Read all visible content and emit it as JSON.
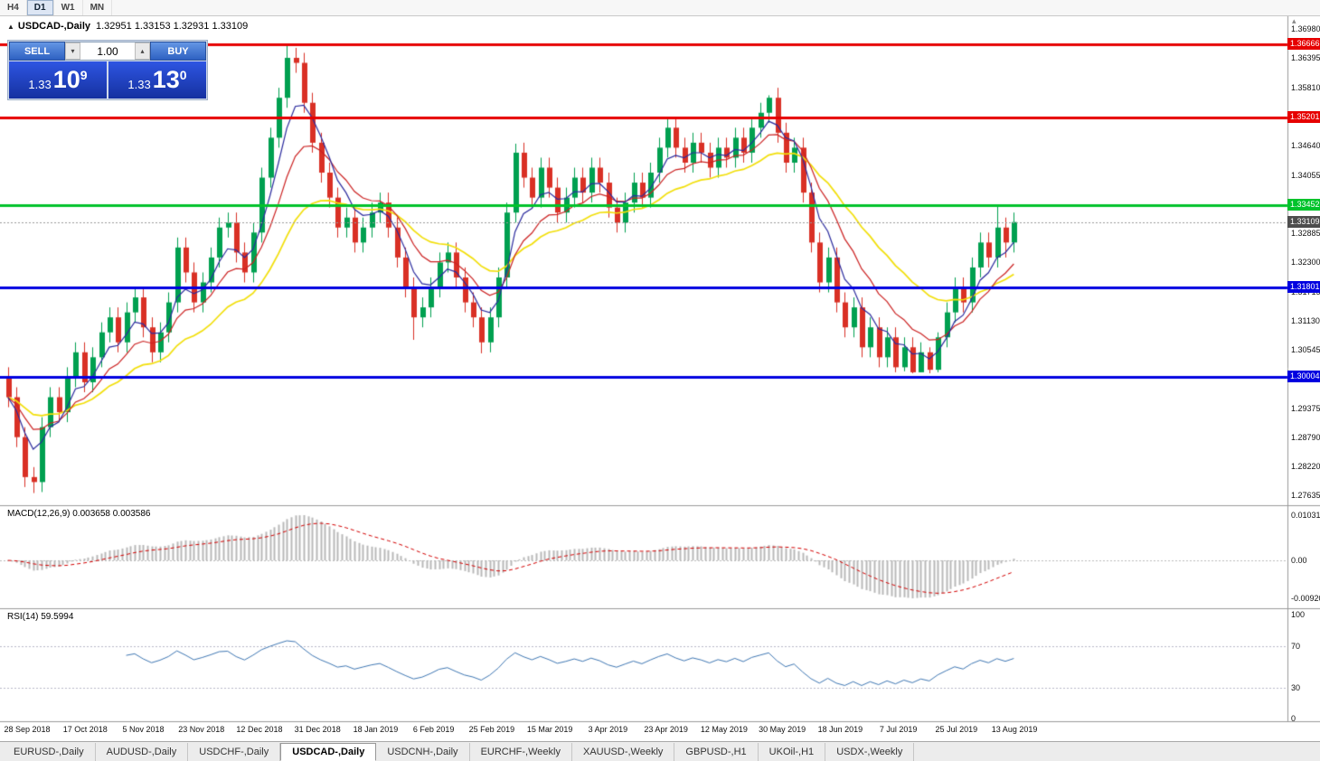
{
  "toolbar": {
    "timeframes": [
      "H4",
      "D1",
      "W1",
      "MN"
    ],
    "active": "D1"
  },
  "chart": {
    "title_symbol": "USDCAD-,Daily",
    "title_ohlc": "1.32951 1.33153 1.32931 1.33109",
    "trade_panel": {
      "sell_label": "SELL",
      "buy_label": "BUY",
      "lot": "1.00",
      "sell_prefix": "1.33",
      "sell_big": "10",
      "sell_sup": "9",
      "buy_prefix": "1.33",
      "buy_big": "13",
      "buy_sup": "0"
    }
  },
  "chart_data": {
    "type": "candlestick",
    "symbol": "USDCAD-",
    "timeframe": "Daily",
    "ohlc_current": {
      "open": 1.32951,
      "high": 1.33153,
      "low": 1.32931,
      "close": 1.33109
    },
    "y_axis": {
      "min": 1.27635,
      "max": 1.3698,
      "ticks": [
        "1.36980",
        "1.36395",
        "1.35810",
        "1.35225",
        "1.34640",
        "1.34055",
        "1.33470",
        "1.32885",
        "1.32300",
        "1.31715",
        "1.31130",
        "1.30545",
        "1.29960",
        "1.29375",
        "1.28790",
        "1.28220",
        "1.27635"
      ]
    },
    "x_labels": [
      "28 Sep 2018",
      "17 Oct 2018",
      "5 Nov 2018",
      "23 Nov 2018",
      "12 Dec 2018",
      "31 Dec 2018",
      "18 Jan 2019",
      "6 Feb 2019",
      "25 Feb 2019",
      "15 Mar 2019",
      "3 Apr 2019",
      "23 Apr 2019",
      "12 May 2019",
      "30 May 2019",
      "18 Jun 2019",
      "7 Jul 2019",
      "25 Jul 2019",
      "13 Aug 2019"
    ],
    "horizontal_lines": [
      {
        "price": 1.36666,
        "label": "1.36666",
        "color": "#e60000"
      },
      {
        "price": 1.35201,
        "label": "1.35201",
        "color": "#e60000"
      },
      {
        "price": 1.33452,
        "label": "1.33452",
        "color": "#00c32b"
      },
      {
        "price": 1.31801,
        "label": "1.31801",
        "color": "#0000e0"
      },
      {
        "price": 1.30004,
        "label": "1.30004",
        "color": "#0000e0"
      }
    ],
    "current_price": {
      "value": 1.33109,
      "label": "1.33109",
      "color": "#4d4d4d"
    },
    "moving_averages": [
      {
        "name": "fast",
        "period": 5,
        "color": "#2b2b9e"
      },
      {
        "name": "mid",
        "period": 10,
        "color": "#cc2222"
      },
      {
        "name": "slow",
        "period": 21,
        "color": "#f2df0a"
      }
    ],
    "colors": {
      "bull": "#00a050",
      "bear": "#d93025"
    },
    "macd": {
      "title": "MACD(12,26,9) 0.003658 0.003586",
      "fast": 12,
      "slow": 26,
      "signal": 9,
      "ticks": [
        {
          "label": "0.010311",
          "value": 0.010311
        },
        {
          "label": "0.00",
          "value": 0
        },
        {
          "label": "-0.00920",
          "value": -0.0092
        }
      ],
      "hist_color": "#b8b8b8",
      "signal_color": "#d40000"
    },
    "rsi": {
      "title": "RSI(14) 59.5994",
      "period": 14,
      "value": 59.5994,
      "levels": [
        70,
        30
      ],
      "ticks": [
        {
          "label": "100",
          "value": 100
        },
        {
          "label": "70",
          "value": 70
        },
        {
          "label": "30",
          "value": 30
        },
        {
          "label": "0",
          "value": 0
        }
      ],
      "color": "#4078b4"
    },
    "candles": [
      [
        1.3,
        1.302,
        1.294,
        1.296
      ],
      [
        1.296,
        1.298,
        1.286,
        1.288
      ],
      [
        1.288,
        1.29,
        1.278,
        1.28
      ],
      [
        1.28,
        1.282,
        1.2768,
        1.279
      ],
      [
        1.279,
        1.292,
        1.277,
        1.29
      ],
      [
        1.29,
        1.298,
        1.288,
        1.296
      ],
      [
        1.296,
        1.298,
        1.291,
        1.293
      ],
      [
        1.293,
        1.302,
        1.291,
        1.3
      ],
      [
        1.3,
        1.307,
        1.298,
        1.305
      ],
      [
        1.305,
        1.307,
        1.297,
        1.299
      ],
      [
        1.299,
        1.306,
        1.297,
        1.304
      ],
      [
        1.304,
        1.311,
        1.302,
        1.309
      ],
      [
        1.309,
        1.314,
        1.307,
        1.312
      ],
      [
        1.312,
        1.314,
        1.305,
        1.307
      ],
      [
        1.307,
        1.315,
        1.305,
        1.313
      ],
      [
        1.313,
        1.318,
        1.311,
        1.316
      ],
      [
        1.316,
        1.318,
        1.308,
        1.31
      ],
      [
        1.31,
        1.312,
        1.303,
        1.305
      ],
      [
        1.305,
        1.311,
        1.303,
        1.309
      ],
      [
        1.309,
        1.317,
        1.307,
        1.315
      ],
      [
        1.315,
        1.328,
        1.313,
        1.326
      ],
      [
        1.326,
        1.328,
        1.319,
        1.321
      ],
      [
        1.321,
        1.323,
        1.313,
        1.315
      ],
      [
        1.315,
        1.321,
        1.313,
        1.319
      ],
      [
        1.319,
        1.326,
        1.317,
        1.324
      ],
      [
        1.324,
        1.332,
        1.322,
        1.33
      ],
      [
        1.33,
        1.333,
        1.328,
        1.331
      ],
      [
        1.331,
        1.333,
        1.323,
        1.325
      ],
      [
        1.325,
        1.327,
        1.319,
        1.321
      ],
      [
        1.321,
        1.331,
        1.319,
        1.329
      ],
      [
        1.329,
        1.342,
        1.327,
        1.34
      ],
      [
        1.34,
        1.35,
        1.338,
        1.348
      ],
      [
        1.348,
        1.358,
        1.346,
        1.356
      ],
      [
        1.356,
        1.3666,
        1.354,
        1.364
      ],
      [
        1.364,
        1.366,
        1.361,
        1.363
      ],
      [
        1.363,
        1.365,
        1.353,
        1.355
      ],
      [
        1.355,
        1.357,
        1.345,
        1.347
      ],
      [
        1.347,
        1.349,
        1.339,
        1.341
      ],
      [
        1.341,
        1.343,
        1.334,
        1.336
      ],
      [
        1.336,
        1.338,
        1.328,
        1.33
      ],
      [
        1.33,
        1.334,
        1.328,
        1.332
      ],
      [
        1.332,
        1.334,
        1.325,
        1.327
      ],
      [
        1.327,
        1.332,
        1.325,
        1.33
      ],
      [
        1.33,
        1.335,
        1.328,
        1.333
      ],
      [
        1.333,
        1.337,
        1.331,
        1.335
      ],
      [
        1.335,
        1.337,
        1.328,
        1.33
      ],
      [
        1.33,
        1.332,
        1.322,
        1.324
      ],
      [
        1.324,
        1.326,
        1.316,
        1.318
      ],
      [
        1.318,
        1.32,
        1.3075,
        1.312
      ],
      [
        1.312,
        1.316,
        1.31,
        1.314
      ],
      [
        1.314,
        1.32,
        1.312,
        1.318
      ],
      [
        1.318,
        1.325,
        1.316,
        1.323
      ],
      [
        1.323,
        1.327,
        1.321,
        1.325
      ],
      [
        1.325,
        1.327,
        1.318,
        1.32
      ],
      [
        1.32,
        1.322,
        1.313,
        1.315
      ],
      [
        1.315,
        1.317,
        1.31,
        1.312
      ],
      [
        1.312,
        1.314,
        1.3048,
        1.307
      ],
      [
        1.307,
        1.314,
        1.305,
        1.312
      ],
      [
        1.312,
        1.322,
        1.31,
        1.32
      ],
      [
        1.32,
        1.335,
        1.318,
        1.333
      ],
      [
        1.333,
        1.3468,
        1.331,
        1.345
      ],
      [
        1.345,
        1.347,
        1.338,
        1.34
      ],
      [
        1.34,
        1.342,
        1.334,
        1.336
      ],
      [
        1.336,
        1.344,
        1.334,
        1.342
      ],
      [
        1.342,
        1.344,
        1.336,
        1.338
      ],
      [
        1.338,
        1.34,
        1.331,
        1.333
      ],
      [
        1.333,
        1.338,
        1.331,
        1.336
      ],
      [
        1.336,
        1.342,
        1.334,
        1.34
      ],
      [
        1.34,
        1.342,
        1.335,
        1.337
      ],
      [
        1.337,
        1.344,
        1.335,
        1.342
      ],
      [
        1.342,
        1.344,
        1.337,
        1.339
      ],
      [
        1.339,
        1.341,
        1.332,
        1.334
      ],
      [
        1.334,
        1.336,
        1.329,
        1.331
      ],
      [
        1.331,
        1.337,
        1.329,
        1.335
      ],
      [
        1.335,
        1.341,
        1.333,
        1.339
      ],
      [
        1.339,
        1.341,
        1.334,
        1.336
      ],
      [
        1.336,
        1.343,
        1.334,
        1.341
      ],
      [
        1.341,
        1.348,
        1.339,
        1.346
      ],
      [
        1.346,
        1.352,
        1.344,
        1.35
      ],
      [
        1.35,
        1.352,
        1.344,
        1.346
      ],
      [
        1.346,
        1.348,
        1.341,
        1.343
      ],
      [
        1.343,
        1.349,
        1.341,
        1.347
      ],
      [
        1.347,
        1.349,
        1.343,
        1.345
      ],
      [
        1.345,
        1.347,
        1.34,
        1.342
      ],
      [
        1.342,
        1.348,
        1.34,
        1.346
      ],
      [
        1.346,
        1.348,
        1.342,
        1.344
      ],
      [
        1.344,
        1.35,
        1.342,
        1.348
      ],
      [
        1.348,
        1.35,
        1.343,
        1.345
      ],
      [
        1.345,
        1.352,
        1.343,
        1.35
      ],
      [
        1.35,
        1.355,
        1.348,
        1.353
      ],
      [
        1.353,
        1.3565,
        1.351,
        1.356
      ],
      [
        1.356,
        1.358,
        1.347,
        1.349
      ],
      [
        1.349,
        1.351,
        1.341,
        1.343
      ],
      [
        1.343,
        1.348,
        1.341,
        1.346
      ],
      [
        1.346,
        1.348,
        1.335,
        1.337
      ],
      [
        1.337,
        1.339,
        1.325,
        1.327
      ],
      [
        1.327,
        1.329,
        1.317,
        1.319
      ],
      [
        1.319,
        1.326,
        1.317,
        1.324
      ],
      [
        1.324,
        1.326,
        1.313,
        1.315
      ],
      [
        1.315,
        1.317,
        1.308,
        1.31
      ],
      [
        1.31,
        1.316,
        1.308,
        1.314
      ],
      [
        1.314,
        1.316,
        1.304,
        1.306
      ],
      [
        1.306,
        1.312,
        1.304,
        1.31
      ],
      [
        1.31,
        1.312,
        1.302,
        1.304
      ],
      [
        1.304,
        1.31,
        1.302,
        1.308
      ],
      [
        1.308,
        1.31,
        1.301,
        1.302
      ],
      [
        1.302,
        1.308,
        1.3012,
        1.306
      ],
      [
        1.306,
        1.308,
        1.3008,
        1.301
      ],
      [
        1.301,
        1.307,
        1.301,
        1.305
      ],
      [
        1.305,
        1.306,
        1.3008,
        1.3015
      ],
      [
        1.3015,
        1.309,
        1.301,
        1.308
      ],
      [
        1.308,
        1.315,
        1.306,
        1.313
      ],
      [
        1.313,
        1.32,
        1.311,
        1.318
      ],
      [
        1.318,
        1.32,
        1.313,
        1.315
      ],
      [
        1.315,
        1.324,
        1.313,
        1.322
      ],
      [
        1.322,
        1.329,
        1.32,
        1.327
      ],
      [
        1.327,
        1.329,
        1.322,
        1.324
      ],
      [
        1.324,
        1.3346,
        1.322,
        1.33
      ],
      [
        1.33,
        1.332,
        1.324,
        1.327
      ],
      [
        1.327,
        1.333,
        1.325,
        1.3311
      ]
    ]
  },
  "tabs": [
    {
      "label": "EURUSD-,Daily",
      "active": false
    },
    {
      "label": "AUDUSD-,Daily",
      "active": false
    },
    {
      "label": "USDCHF-,Daily",
      "active": false
    },
    {
      "label": "USDCAD-,Daily",
      "active": true
    },
    {
      "label": "USDCNH-,Daily",
      "active": false
    },
    {
      "label": "EURCHF-,Weekly",
      "active": false
    },
    {
      "label": "XAUUSD-,Weekly",
      "active": false
    },
    {
      "label": "GBPUSD-,H1",
      "active": false
    },
    {
      "label": "UKOil-,H1",
      "active": false
    },
    {
      "label": "USDX-,Weekly",
      "active": false
    }
  ]
}
